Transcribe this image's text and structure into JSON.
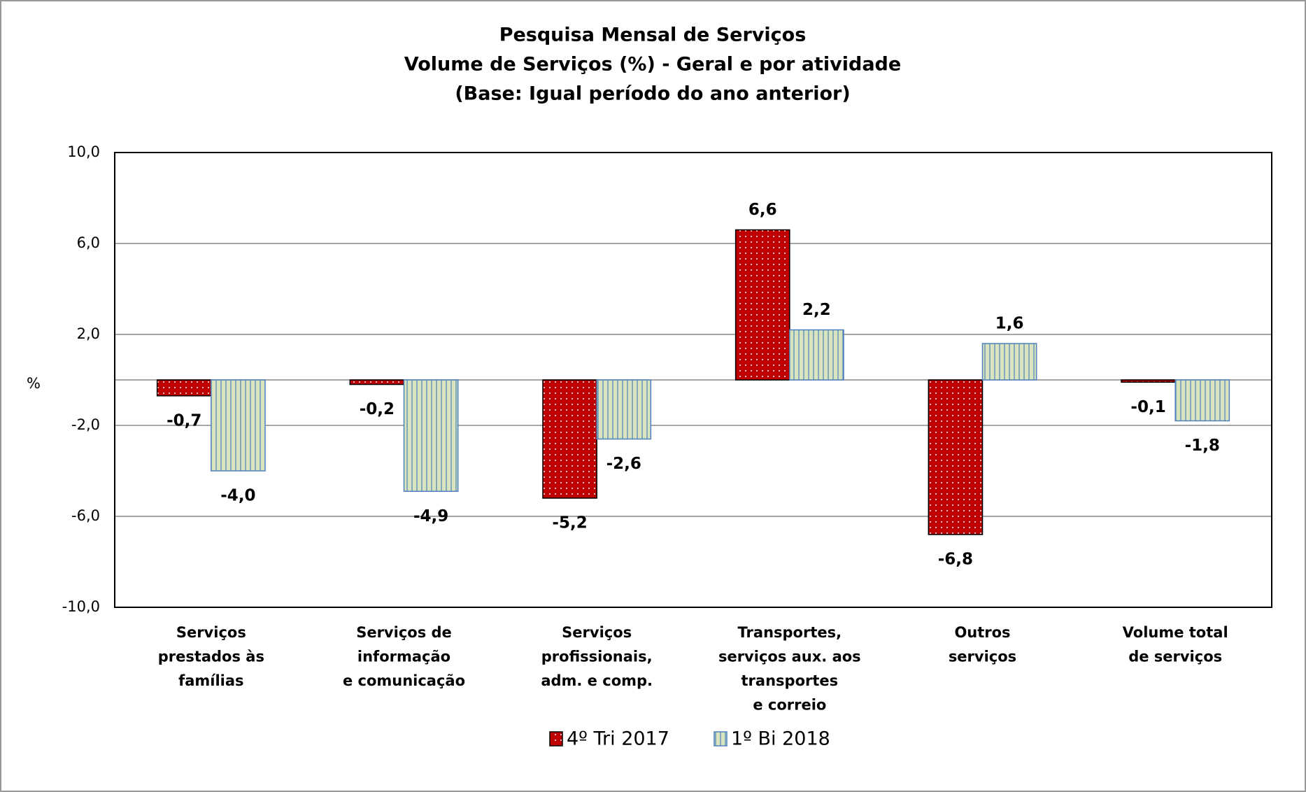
{
  "chart_data": {
    "type": "bar",
    "title": [
      "Pesquisa Mensal de Serviços",
      "Volume de Serviços (%) - Geral e por atividade",
      "(Base: Igual período do ano anterior)"
    ],
    "y_label": "%",
    "categories": [
      [
        "Serviços",
        "prestados às",
        "famílias"
      ],
      [
        "Serviços de",
        "informação",
        "e comunicação"
      ],
      [
        "Serviços",
        "profissionais,",
        "adm. e comp."
      ],
      [
        "Transportes,",
        "serviços aux. aos",
        "transportes",
        "e correio"
      ],
      [
        "Outros",
        "serviços"
      ],
      [
        "Volume total",
        "de serviços"
      ]
    ],
    "series": [
      {
        "name": "4º Tri 2017",
        "color": "#c00000",
        "values": [
          -0.7,
          -0.2,
          -5.2,
          6.6,
          -6.8,
          -0.1
        ],
        "value_labels": [
          "-0,7",
          "-0,2",
          "-5,2",
          "6,6",
          "-6,8",
          "-0,1"
        ]
      },
      {
        "name": "1º Bi 2018",
        "color": "#d7e4bd",
        "values": [
          -4.0,
          -4.9,
          -2.6,
          2.2,
          1.6,
          -1.8
        ],
        "value_labels": [
          "-4,0",
          "-4,9",
          "-2,6",
          "2,2",
          "1,6",
          "-1,8"
        ]
      }
    ],
    "ylim": [
      -10,
      10
    ],
    "yticks": [
      {
        "value": 10,
        "label": "10,0"
      },
      {
        "value": 6,
        "label": "6,0"
      },
      {
        "value": 2,
        "label": "2,0"
      },
      {
        "value": -2,
        "label": "-2,0"
      },
      {
        "value": -6,
        "label": "-6,0"
      },
      {
        "value": -10,
        "label": "-10,0"
      }
    ],
    "grid": true,
    "legend": "bottom"
  }
}
